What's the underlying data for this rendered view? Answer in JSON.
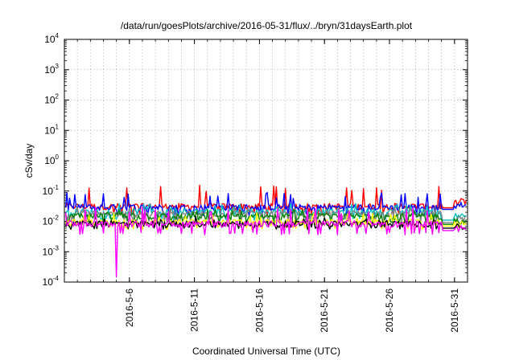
{
  "chart_data": {
    "type": "line",
    "title": "/data/run/goesPlots/archive/2016-05-31/flux/../bryn/31daysEarth.plot",
    "xlabel": "Coordinated Universal Time (UTC)",
    "ylabel": "cSv/day",
    "y_scale": "log",
    "ylim": [
      0.0001,
      10000
    ],
    "y_ticks": [
      {
        "base": "10",
        "exp": "-4",
        "value": 0.0001
      },
      {
        "base": "10",
        "exp": "-3",
        "value": 0.001
      },
      {
        "base": "10",
        "exp": "-2",
        "value": 0.01
      },
      {
        "base": "10",
        "exp": "-1",
        "value": 0.1
      },
      {
        "base": "10",
        "exp": "0",
        "value": 1
      },
      {
        "base": "10",
        "exp": "1",
        "value": 10
      },
      {
        "base": "10",
        "exp": "2",
        "value": 100
      },
      {
        "base": "10",
        "exp": "3",
        "value": 1000
      },
      {
        "base": "10",
        "exp": "4",
        "value": 10000
      }
    ],
    "xlim": [
      "2016-05-01",
      "2016-06-01"
    ],
    "x_ticks": [
      {
        "label": "2016-5-6",
        "date": "2016-05-06"
      },
      {
        "label": "2016-5-11",
        "date": "2016-05-11"
      },
      {
        "label": "2016-5-16",
        "date": "2016-05-16"
      },
      {
        "label": "2016-5-21",
        "date": "2016-05-21"
      },
      {
        "label": "2016-5-26",
        "date": "2016-05-26"
      },
      {
        "label": "2016-5-31",
        "date": "2016-05-31"
      }
    ],
    "grid": true,
    "series": [
      {
        "color": "#ff0000",
        "base": 0.03,
        "peak": 0.16,
        "low": 0.018,
        "end": 0.028,
        "after_gap": 0.045
      },
      {
        "color": "#0000ff",
        "base": 0.028,
        "peak": 0.09,
        "low": 0.017,
        "end": 0.025,
        "after_gap": 0.035
      },
      {
        "color": "#00c0c0",
        "base": 0.02,
        "peak": 0.04,
        "low": 0.012,
        "end": 0.011,
        "after_gap": 0.015
      },
      {
        "color": "#808080",
        "base": 0.017,
        "peak": 0.03,
        "low": 0.01,
        "end": 0.009,
        "after_gap": 0.012
      },
      {
        "color": "#008000",
        "base": 0.014,
        "peak": 0.025,
        "low": 0.009,
        "end": 0.008,
        "after_gap": 0.01
      },
      {
        "color": "#ffff00",
        "base": 0.009,
        "peak": 0.02,
        "low": 0.006,
        "end": 0.007,
        "after_gap": 0.008
      },
      {
        "color": "#000000",
        "base": 0.008,
        "peak": 0.015,
        "low": 0.006,
        "end": 0.006,
        "after_gap": 0.007
      },
      {
        "color": "#ff00ff",
        "base": 0.008,
        "peak": 0.03,
        "low": 0.004,
        "end": 0.005,
        "after_gap": 0.006,
        "dip_date": "2016-05-05",
        "dip_value": 0.00015
      }
    ],
    "data_gap": [
      "2016-05-30",
      "2016-05-31"
    ]
  }
}
